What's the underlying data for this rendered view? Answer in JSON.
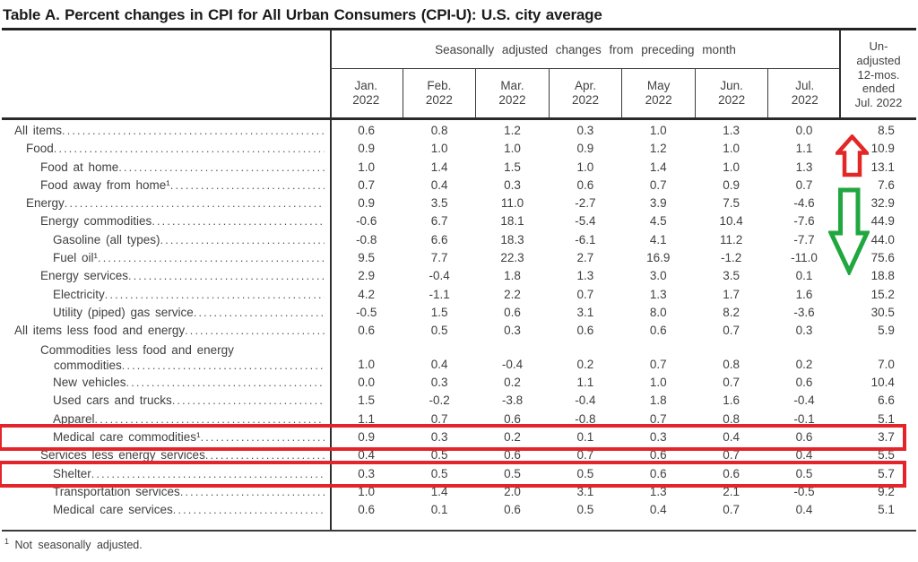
{
  "title": "Table A. Percent changes in CPI for All Urban Consumers (CPI-U): U.S. city average",
  "table": {
    "spanner": "Seasonally adjusted changes from preceding month",
    "months": [
      "Jan.",
      "Feb.",
      "Mar.",
      "Apr.",
      "May",
      "Jun.",
      "Jul."
    ],
    "year": "2022",
    "unadjusted_header_lines": [
      "Un-",
      "adjusted",
      "12-mos.",
      "ended",
      "Jul. 2022"
    ],
    "rows": [
      {
        "label": "All items",
        "indent": 0,
        "values": [
          "0.6",
          "0.8",
          "1.2",
          "0.3",
          "1.0",
          "1.3",
          "0.0",
          "8.5"
        ]
      },
      {
        "label": "Food",
        "indent": 1,
        "values": [
          "0.9",
          "1.0",
          "1.0",
          "0.9",
          "1.2",
          "1.0",
          "1.1",
          "10.9"
        ]
      },
      {
        "label": "Food at home",
        "indent": 2,
        "values": [
          "1.0",
          "1.4",
          "1.5",
          "1.0",
          "1.4",
          "1.0",
          "1.3",
          "13.1"
        ]
      },
      {
        "label": "Food away from home¹",
        "indent": 2,
        "values": [
          "0.7",
          "0.4",
          "0.3",
          "0.6",
          "0.7",
          "0.9",
          "0.7",
          "7.6"
        ]
      },
      {
        "label": "Energy",
        "indent": 1,
        "values": [
          "0.9",
          "3.5",
          "11.0",
          "-2.7",
          "3.9",
          "7.5",
          "-4.6",
          "32.9"
        ]
      },
      {
        "label": "Energy commodities",
        "indent": 2,
        "values": [
          "-0.6",
          "6.7",
          "18.1",
          "-5.4",
          "4.5",
          "10.4",
          "-7.6",
          "44.9"
        ]
      },
      {
        "label": "Gasoline (all types)",
        "indent": 3,
        "values": [
          "-0.8",
          "6.6",
          "18.3",
          "-6.1",
          "4.1",
          "11.2",
          "-7.7",
          "44.0"
        ]
      },
      {
        "label": "Fuel oil¹",
        "indent": 3,
        "values": [
          "9.5",
          "7.7",
          "22.3",
          "2.7",
          "16.9",
          "-1.2",
          "-11.0",
          "75.6"
        ]
      },
      {
        "label": "Energy services",
        "indent": 2,
        "values": [
          "2.9",
          "-0.4",
          "1.8",
          "1.3",
          "3.0",
          "3.5",
          "0.1",
          "18.8"
        ]
      },
      {
        "label": "Electricity",
        "indent": 3,
        "values": [
          "4.2",
          "-1.1",
          "2.2",
          "0.7",
          "1.3",
          "1.7",
          "1.6",
          "15.2"
        ]
      },
      {
        "label": "Utility (piped) gas service",
        "indent": 3,
        "values": [
          "-0.5",
          "1.5",
          "0.6",
          "3.1",
          "8.0",
          "8.2",
          "-3.6",
          "30.5"
        ]
      },
      {
        "label": "All items less food and energy",
        "indent": 0,
        "values": [
          "0.6",
          "0.5",
          "0.3",
          "0.6",
          "0.6",
          "0.7",
          "0.3",
          "5.9"
        ]
      },
      {
        "label": "Commodities less food and energy",
        "label_line2": "commodities",
        "indent": 2,
        "values": [
          "1.0",
          "0.4",
          "-0.4",
          "0.2",
          "0.7",
          "0.8",
          "0.2",
          "7.0"
        ]
      },
      {
        "label": "New vehicles",
        "indent": 3,
        "values": [
          "0.0",
          "0.3",
          "0.2",
          "1.1",
          "1.0",
          "0.7",
          "0.6",
          "10.4"
        ]
      },
      {
        "label": "Used cars and trucks",
        "indent": 3,
        "values": [
          "1.5",
          "-0.2",
          "-3.8",
          "-0.4",
          "1.8",
          "1.6",
          "-0.4",
          "6.6"
        ]
      },
      {
        "label": "Apparel",
        "indent": 3,
        "values": [
          "1.1",
          "0.7",
          "0.6",
          "-0.8",
          "0.7",
          "0.8",
          "-0.1",
          "5.1"
        ]
      },
      {
        "label": "Medical care commodities¹",
        "indent": 3,
        "boxed": true,
        "values": [
          "0.9",
          "0.3",
          "0.2",
          "0.1",
          "0.3",
          "0.4",
          "0.6",
          "3.7"
        ]
      },
      {
        "label": "Services less energy services",
        "indent": 2,
        "values": [
          "0.4",
          "0.5",
          "0.6",
          "0.7",
          "0.6",
          "0.7",
          "0.4",
          "5.5"
        ]
      },
      {
        "label": "Shelter",
        "indent": 3,
        "boxed": true,
        "values": [
          "0.3",
          "0.5",
          "0.5",
          "0.5",
          "0.6",
          "0.6",
          "0.5",
          "5.7"
        ]
      },
      {
        "label": "Transportation services",
        "indent": 3,
        "values": [
          "1.0",
          "1.4",
          "2.0",
          "3.1",
          "1.3",
          "2.1",
          "-0.5",
          "9.2"
        ]
      },
      {
        "label": "Medical care services",
        "indent": 3,
        "values": [
          "0.6",
          "0.1",
          "0.6",
          "0.5",
          "0.4",
          "0.7",
          "0.4",
          "5.1"
        ]
      }
    ]
  },
  "footnote": {
    "marker": "1",
    "text": "Not seasonally adjusted."
  },
  "annotations": {
    "highlight_box_color": "#e3252b",
    "up_arrow_color": "#e32726",
    "down_arrow_color": "#21a73f",
    "highlighted_rows": [
      "Medical care commodities¹",
      "Shelter"
    ]
  }
}
